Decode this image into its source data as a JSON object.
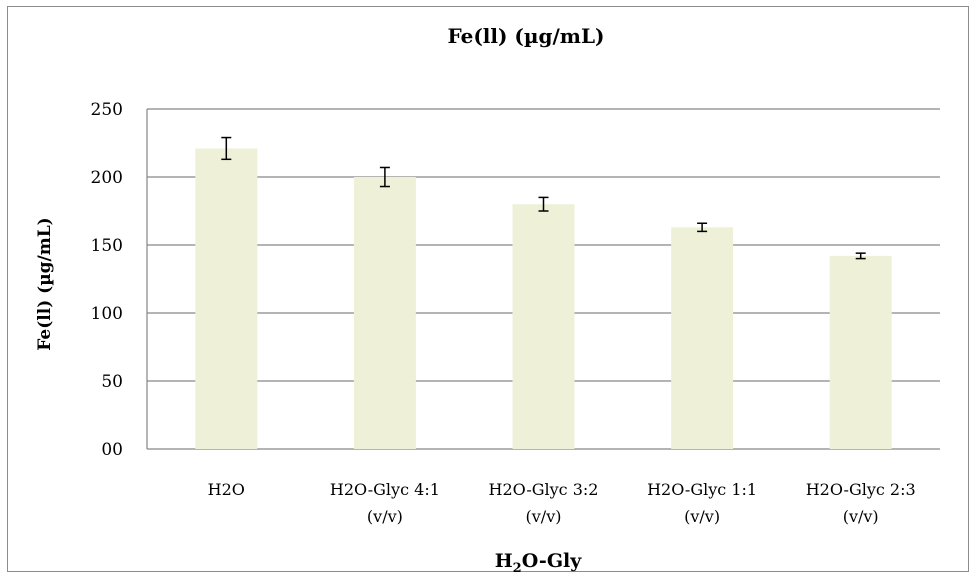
{
  "chart_data": {
    "type": "bar",
    "title": "Fe(ll) (µg/mL)",
    "ylabel": "Fe(ll) (µg/mL)",
    "xlabel_main": "H",
    "xlabel_sub": "2",
    "xlabel_rest": "O-Gly",
    "categories": [
      [
        "H2O"
      ],
      [
        "H2O-Glyc 4:1",
        "(v/v)"
      ],
      [
        "H2O-Glyc 3:2",
        "(v/v)"
      ],
      [
        "H2O-Glyc 1:1",
        "(v/v)"
      ],
      [
        "H2O-Glyc 2:3",
        "(v/v)"
      ]
    ],
    "values": [
      221,
      200,
      180,
      163,
      142
    ],
    "errors": [
      8,
      7,
      5,
      3,
      2
    ],
    "ylim": [
      0,
      250
    ],
    "yticks": [
      "00",
      "50",
      "100",
      "150",
      "200",
      "250"
    ],
    "ytick_values": [
      0,
      50,
      100,
      150,
      200,
      250
    ],
    "grid": true,
    "bar_color": "#eef1d8",
    "grid_color": "#868686",
    "error_color": "#000000"
  }
}
